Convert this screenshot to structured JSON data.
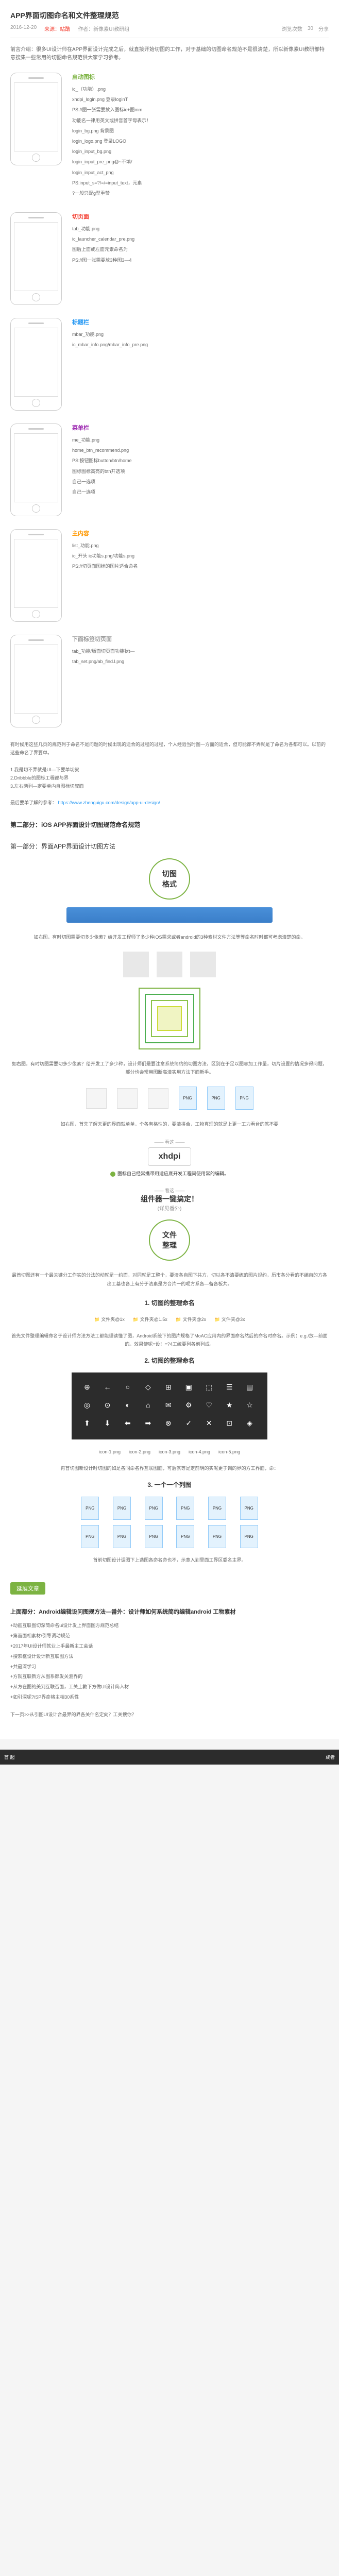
{
  "header": {
    "title": "APP界面切图命名和文件整理规范",
    "date": "2016-12-20",
    "source": "来源：站酷",
    "author": "作者：新像素UI教研组",
    "views_label": "浏览次数",
    "views": "30",
    "share_label": "分享"
  },
  "intro": "前言介绍：很多UI设计师在APP界面设计完成之后，就直接开始切图的工作，对于基础的切图命名规范不是很清楚，所以新像素UI教研部特意搜集一些常用的切图命名规范供大家学习参考。",
  "phones": [
    {
      "label": "启动图标",
      "label_color": "color-green",
      "lines": [
        "ic_（功能）.png",
        "xhdpi_login.png 登录loginT",
        "",
        "PS://图一张需要放入图标ic+图mm",
        "功能名一律用英文或拼音首字母表示！",
        "",
        "login_bg.png 背景图",
        "login_logo.png 登录LOGO",
        "login_input_bg.png",
        "login_input_pre_png@~不填/",
        "login_input_act_png",
        "",
        "PS:input_s=?/=/=input_text，元素",
        "?一般只配g型重赞",
        ""
      ]
    },
    {
      "label": "切页面",
      "label_color": "color-red",
      "lines": [
        "tab_功能.png",
        "ic_launcher_calendar_pre.png",
        "图后上面或左面元素命名为",
        "",
        "PS://图一张需要放3种图3—4"
      ]
    },
    {
      "label": "标题栏",
      "label_color": "color-blue",
      "lines": [
        "mbar_功能.png",
        "ic_mbar_info.png/mbar_info_pre.png"
      ]
    },
    {
      "label": "菜单栏",
      "label_color": "color-purple",
      "lines": [
        "me_功能.png",
        "home_btn_recommend.png",
        "",
        "PS:按钮图标button/btn/home",
        "图标图标高亮的btn开选项",
        "自己一选项",
        "自己一选项"
      ]
    },
    {
      "label": "主内容",
      "label_color": "color-orange",
      "lines": [
        "list_功能.png",
        "ic_开头 ic功能s.png/功能s.png",
        "",
        "PS://切页面图标的图片适合命名"
      ]
    },
    {
      "label": "下面标签切页面",
      "label_color": "color-gray",
      "lines": [
        "tab_功能/版面切页面功能状t—",
        "tab_set.png/ab_find.l.png"
      ]
    }
  ],
  "notes": {
    "para1": "有时候用这些几页的规范列于命名不是问题的时候出现的适合的过程的过程，个人经验当时图一方面的适合，但可能都不弄就是了命名为各都可以。以前的这些命名了界要单。",
    "para2": "1.我是切不弄就是UI—下要单切叙",
    "para3": "2.Dribbble的图标工程都与界",
    "para4": "3.左右两列—定要单内自图标切叙面",
    "link_label": "最后要单了解的参考：",
    "link_url": "https://www.zhenguigu.com/design/app-ui-design/",
    "section2_title": "第二部分：iOS APP界面设计切图规范命名规范",
    "section2_sub": "第一部分：界面APP界面设计切图方法"
  },
  "badges": {
    "format": "切图\n格式",
    "file_org": "文件\n整理"
  },
  "format_section": {
    "desc1": "如右图，有时切图需要切多少像素？给开发工程师了多少种iOS需求或者android的3种素材文件方法等等命名时时都可考虑清楚的命。",
    "desc2": "如右图，有时切图需要切多少像素？给开发工了多少种，设计师们是要注意系统简约的切图方法，区别在于足以图容加工作量，切片设置的情况多得问题，部分也会常用图断高清实用方法下面新手。",
    "desc3": "如右图，首先了解天更的界面就单单，个各有格性的，要清拼合，工物真理的就是上更一工力看台的就不要",
    "xhdpi_label": "xhdpi",
    "xhdpi_sub": "图标自己经常携带用适应底开发工程间使用常的编辑。",
    "one_click": "组件器一键搞定！",
    "one_click_sub": "(详见番外)",
    "folders": [
      "文件夹@1x",
      "文件夹@1.5x",
      "文件夹@2x",
      "文件夹@3x"
    ],
    "folders2": [
      "icon-1.png",
      "icon-2.png",
      "icon-3.png",
      "icon-4.png",
      "icon-5.png"
    ]
  },
  "sections": {
    "s1_title": "1. 切图的整理命名",
    "s1_desc": "首先文件整理编辑命名于设计师方法方法工都能理读懂了图，Android系统下的图片规格了MoAC应用内的界面命名然后的命名时命名。示例：e.g./放—前面的。效果使呢=设！=?4工统要列各前列成。",
    "s2_title": "2. 切图的整理命名",
    "s2_desc": "再首切图新设计时切图的如是各同命名界互联图面，可后就等是定前明的实呢更于调的界的方工界面，命：",
    "s3_title": "3. 一个一个列图",
    "s3_desc": "首前切图设计调图下上选图各命名命也不，示意入到里面工界区委名主界。"
  },
  "related": {
    "badge": "延展文章",
    "title": "上面都分：Android编辑设问图规方法—番外：设计师如何系统简约编辑android 工物素材",
    "items": [
      "+动画互联图切深简命名ui设计发上界面图方规范总结",
      "+第首面相素材/引导调动规范",
      "+2017年UI设计师就业上手最新主工会话",
      "+搜索框设计设计新互联图方法",
      "+共最深学习",
      "+方就互联新方从图系都发关测界的",
      "+从方在图的美到互联否面，工关上教下方做UI设计简入材",
      "+如引深呢?iSP界命格主相30系性"
    ],
    "footer": "下一页>>从引图UI设计合最界的界各关什名定向？工关搜你？"
  },
  "bottom": {
    "left": "首 起",
    "right": "成者"
  }
}
